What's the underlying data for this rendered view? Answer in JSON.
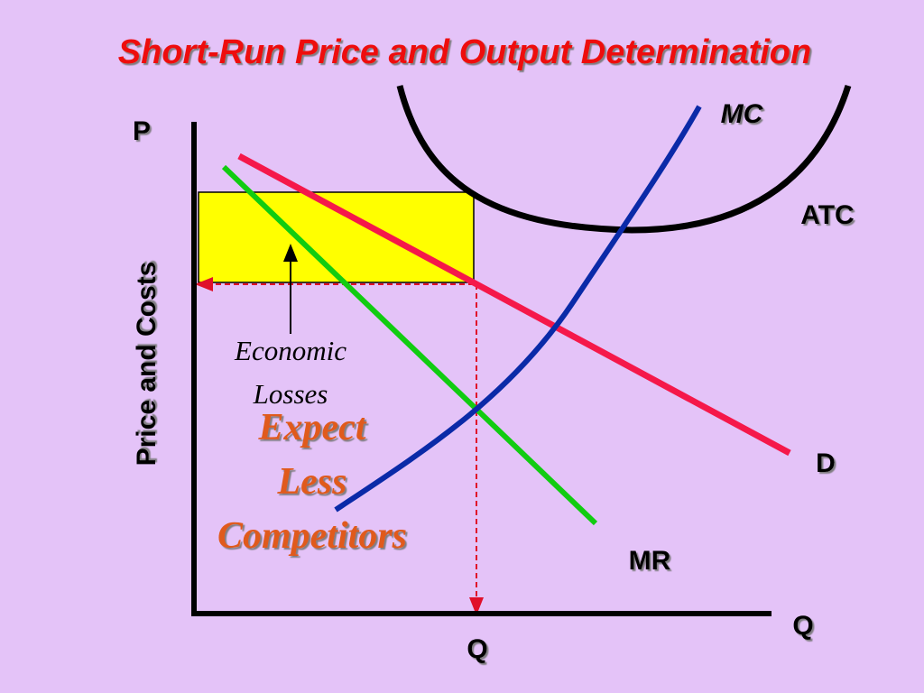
{
  "title": "Short-Run Price and Output Determination",
  "axes": {
    "y_symbol": "P",
    "y_title": "Price and Costs",
    "x_symbol": "Q",
    "quantity_marker": "Q"
  },
  "curves": {
    "mc": "MC",
    "atc": "ATC",
    "demand": "D",
    "mr": "MR"
  },
  "annotations": {
    "losses": [
      "Economic",
      "Losses"
    ],
    "outlook": [
      "Expect",
      "Less",
      "Competitors"
    ]
  }
}
